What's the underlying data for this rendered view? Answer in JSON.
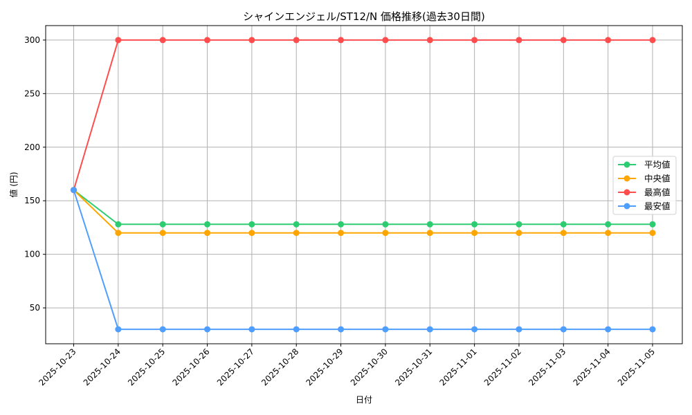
{
  "chart_data": {
    "type": "line",
    "title": "シャインエンジェル/ST12/N 価格推移(過去30日間)",
    "xlabel": "日付",
    "ylabel": "値 (円)",
    "categories": [
      "2025-10-23",
      "2025-10-24",
      "2025-10-25",
      "2025-10-26",
      "2025-10-27",
      "2025-10-28",
      "2025-10-29",
      "2025-10-30",
      "2025-10-31",
      "2025-11-01",
      "2025-11-02",
      "2025-11-03",
      "2025-11-04",
      "2025-11-05"
    ],
    "series": [
      {
        "name": "平均値",
        "color": "#2ecc71",
        "values": [
          160,
          128,
          128,
          128,
          128,
          128,
          128,
          128,
          128,
          128,
          128,
          128,
          128,
          128
        ]
      },
      {
        "name": "中央値",
        "color": "#ffa500",
        "values": [
          160,
          120,
          120,
          120,
          120,
          120,
          120,
          120,
          120,
          120,
          120,
          120,
          120,
          120
        ]
      },
      {
        "name": "最高値",
        "color": "#ff4d4d",
        "values": [
          160,
          300,
          300,
          300,
          300,
          300,
          300,
          300,
          300,
          300,
          300,
          300,
          300,
          300
        ]
      },
      {
        "name": "最安値",
        "color": "#4d9eff",
        "values": [
          160,
          30,
          30,
          30,
          30,
          30,
          30,
          30,
          30,
          30,
          30,
          30,
          30,
          30
        ]
      }
    ],
    "yticks": [
      50,
      100,
      150,
      200,
      250,
      300
    ],
    "ylim": [
      16.5,
      313.5
    ],
    "grid": true,
    "legend_position": "center right",
    "x_tick_rotation": 45
  }
}
